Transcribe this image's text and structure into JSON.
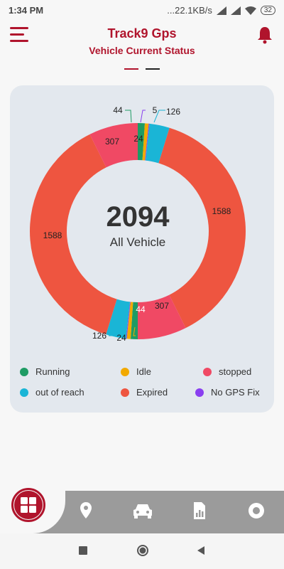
{
  "status_bar": {
    "time": "1:34 PM",
    "network_speed": "...22.1KB/s",
    "battery": "32"
  },
  "header": {
    "title": "Track9 Gps",
    "subtitle": "Vehicle Current Status"
  },
  "center": {
    "total": "2094",
    "label": "All Vehicle"
  },
  "chart_data": {
    "type": "pie",
    "style": "donut",
    "categories": [
      "Running",
      "Idle",
      "stopped",
      "out of reach",
      "Expired",
      "No GPS Fix"
    ],
    "colors": [
      "#1e9b64",
      "#f2a900",
      "#f04964",
      "#1ab5d6",
      "#ee5540",
      "#8a3ff0"
    ],
    "note": "Two rings of labels appear (mirrored halves), values shown are as printed.",
    "slices": [
      {
        "category": "Running",
        "value": 44
      },
      {
        "category": "Idle",
        "value": 24
      },
      {
        "category": "No GPS Fix",
        "value": 5
      },
      {
        "category": "out of reach",
        "value": 126
      },
      {
        "category": "Expired",
        "value": 1588
      },
      {
        "category": "stopped",
        "value": 307
      }
    ],
    "labels": {
      "top_running": "44",
      "top_idle": "24",
      "top_nogps": "5",
      "top_outofreach": "126",
      "right_expired": "1588",
      "left_expired": "1588",
      "top_stopped": "307",
      "bottom_stopped": "307",
      "bottom_running": "44",
      "bottom_outofreach": "126",
      "bottom_idle": "24"
    }
  },
  "legend": [
    {
      "label": "Running",
      "color": "#1e9b64"
    },
    {
      "label": "Idle",
      "color": "#f2a900"
    },
    {
      "label": "stopped",
      "color": "#f04964"
    },
    {
      "label": "out of reach",
      "color": "#1ab5d6"
    },
    {
      "label": "Expired",
      "color": "#ee5540"
    },
    {
      "label": "No GPS Fix",
      "color": "#8a3ff0"
    }
  ],
  "colors": {
    "brand": "#b0142c",
    "card_bg": "#e3e8ee",
    "nav_bg": "#9b9b9b"
  },
  "bottom_nav": {
    "icons": [
      "home-grid-icon",
      "location-pin-icon",
      "car-icon",
      "report-icon",
      "record-icon"
    ]
  }
}
